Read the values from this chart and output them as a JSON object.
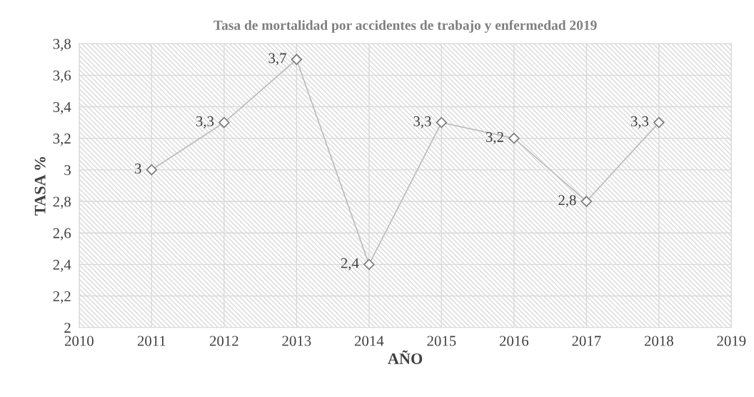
{
  "chart_data": {
    "type": "line",
    "title": "Tasa de mortalidad por accidentes de trabajo y enfermedad 2019",
    "xlabel": "AÑO",
    "ylabel": "TASA %",
    "x": [
      2011,
      2012,
      2013,
      2014,
      2015,
      2016,
      2017,
      2018
    ],
    "series": [
      {
        "color": "#bfbfbf",
        "values": [
          3,
          3.3,
          3.7,
          2.4,
          3.3,
          3.2,
          2.8,
          3.3
        ],
        "value_labels": [
          "3",
          "3,3",
          "3,7",
          "2,4",
          "3,3",
          "3,2",
          "2,8",
          "3,3"
        ]
      }
    ],
    "xlim": [
      2010,
      2019
    ],
    "xticks": [
      2010,
      2011,
      2012,
      2013,
      2014,
      2015,
      2016,
      2017,
      2018,
      2019
    ],
    "ylim": [
      2,
      3.8
    ],
    "yticks": [
      {
        "value": 2,
        "label": "2"
      },
      {
        "value": 2.2,
        "label": "2,2"
      },
      {
        "value": 2.4,
        "label": "2,4"
      },
      {
        "value": 2.6,
        "label": "2,6"
      },
      {
        "value": 2.8,
        "label": "2,8"
      },
      {
        "value": 3,
        "label": "3"
      },
      {
        "value": 3.2,
        "label": "3,2"
      },
      {
        "value": 3.4,
        "label": "3,4"
      },
      {
        "value": 3.6,
        "label": "3,6"
      },
      {
        "value": 3.8,
        "label": "3,8"
      }
    ],
    "grid": true,
    "marker": "diamond",
    "line_style": "solid",
    "legend": false
  }
}
